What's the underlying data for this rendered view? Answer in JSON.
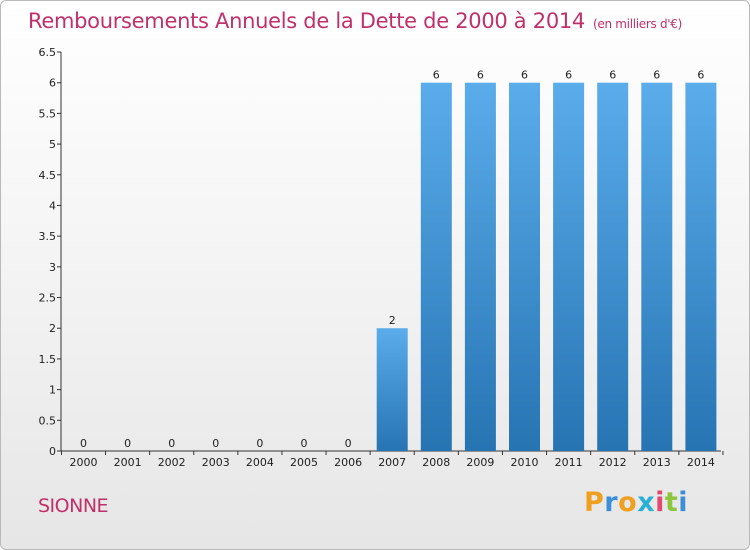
{
  "header": {
    "title": "Remboursements Annuels de la Dette de 2000 à 2014",
    "unit": "(en milliers d'€)"
  },
  "commune": "SIONNE",
  "logo": {
    "text": "Proxiti",
    "letter_colors": [
      "#f0a020",
      "#3a8fd8",
      "#f0a020",
      "#2ab0d8",
      "#e34a6f",
      "#8cc63f",
      "#3a8fd8"
    ]
  },
  "colors": {
    "bar_top": "#5aacea",
    "bar_bottom": "#2774b3",
    "axis": "#333333",
    "accent": "#c0306a"
  },
  "chart_data": {
    "type": "bar",
    "title": "Remboursements Annuels de la Dette de 2000 à 2014",
    "categories": [
      "2000",
      "2001",
      "2002",
      "2003",
      "2004",
      "2005",
      "2006",
      "2007",
      "2008",
      "2009",
      "2010",
      "2011",
      "2012",
      "2013",
      "2014"
    ],
    "values": [
      0,
      0,
      0,
      0,
      0,
      0,
      0,
      2,
      6,
      6,
      6,
      6,
      6,
      6,
      6
    ],
    "data_labels": [
      "0",
      "0",
      "0",
      "0",
      "0",
      "0",
      "0",
      "2",
      "6",
      "6",
      "6",
      "6",
      "6",
      "6",
      "6"
    ],
    "ylim": [
      0,
      6.5
    ],
    "y_ticks": [
      0,
      0.5,
      1,
      1.5,
      2,
      2.5,
      3,
      3.5,
      4,
      4.5,
      5,
      5.5,
      6,
      6.5
    ],
    "y_tick_labels": [
      "0",
      "0.5",
      "1",
      "1.5",
      "2",
      "2.5",
      "3",
      "3.5",
      "4",
      "4.5",
      "5",
      "5.5",
      "6",
      "6.5"
    ],
    "xlabel": "",
    "ylabel": "",
    "grid": false,
    "legend": "none"
  }
}
